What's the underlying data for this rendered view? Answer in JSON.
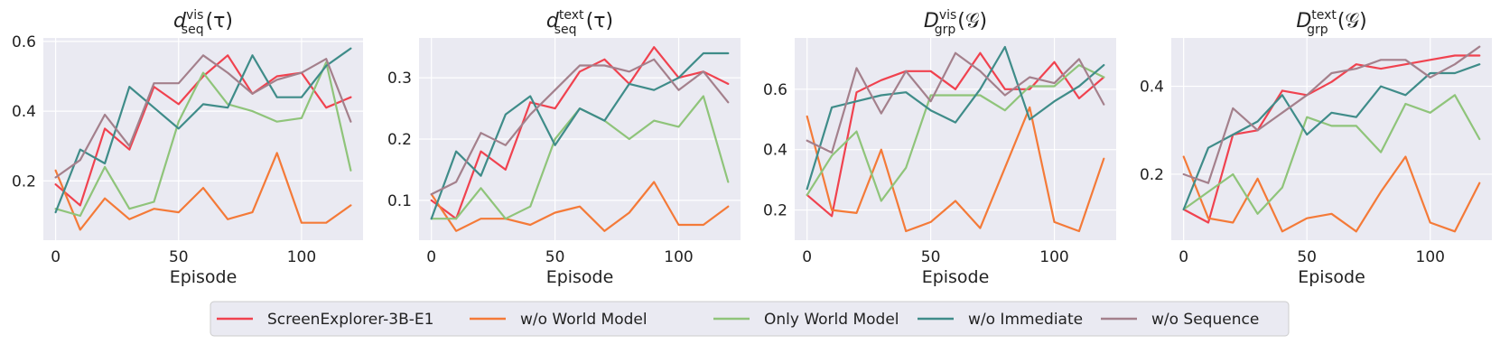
{
  "chart_data": [
    {
      "type": "line",
      "title_main": "d",
      "title_sup": "vis",
      "title_sub": "seq",
      "title_arg": "(τ)",
      "xlabel": "Episode",
      "ylabel": "",
      "xlim": [
        -5,
        125
      ],
      "ylim": [
        0.03,
        0.61
      ],
      "xticks": [
        0,
        50,
        100
      ],
      "yticks": [
        0.2,
        0.4,
        0.6
      ],
      "ytick_labels": [
        "0.2",
        "0.4",
        "0.6"
      ],
      "x": [
        0,
        10,
        20,
        30,
        40,
        50,
        60,
        70,
        80,
        90,
        100,
        110,
        120
      ],
      "series": [
        {
          "name": "ScreenExplorer-3B-E1",
          "values": [
            0.19,
            0.13,
            0.35,
            0.29,
            0.47,
            0.42,
            0.5,
            0.56,
            0.45,
            0.5,
            0.51,
            0.41,
            0.44
          ]
        },
        {
          "name": "w/o World Model",
          "values": [
            0.23,
            0.06,
            0.15,
            0.09,
            0.12,
            0.11,
            0.18,
            0.09,
            0.11,
            0.28,
            0.08,
            0.08,
            0.13
          ]
        },
        {
          "name": "Only World Model",
          "values": [
            0.12,
            0.1,
            0.24,
            0.12,
            0.14,
            0.37,
            0.51,
            0.42,
            0.4,
            0.37,
            0.38,
            0.54,
            0.23
          ]
        },
        {
          "name": "w/o Immediate",
          "values": [
            0.11,
            0.29,
            0.25,
            0.47,
            0.41,
            0.35,
            0.42,
            0.41,
            0.56,
            0.44,
            0.44,
            0.53,
            0.58
          ]
        },
        {
          "name": "w/o Sequence",
          "values": [
            0.21,
            0.26,
            0.39,
            0.3,
            0.48,
            0.48,
            0.56,
            0.51,
            0.45,
            0.49,
            0.51,
            0.55,
            0.37
          ]
        }
      ]
    },
    {
      "type": "line",
      "title_main": "d",
      "title_sup": "text",
      "title_sub": "seq",
      "title_arg": "(τ)",
      "xlabel": "Episode",
      "ylabel": "",
      "xlim": [
        -5,
        125
      ],
      "ylim": [
        0.035,
        0.365
      ],
      "xticks": [
        0,
        50,
        100
      ],
      "yticks": [
        0.1,
        0.2,
        0.3
      ],
      "ytick_labels": [
        "0.1",
        "0.2",
        "0.3"
      ],
      "x": [
        0,
        10,
        20,
        30,
        40,
        50,
        60,
        70,
        80,
        90,
        100,
        110,
        120
      ],
      "series": [
        {
          "name": "ScreenExplorer-3B-E1",
          "values": [
            0.1,
            0.07,
            0.18,
            0.15,
            0.26,
            0.25,
            0.31,
            0.33,
            0.29,
            0.35,
            0.3,
            0.31,
            0.29
          ]
        },
        {
          "name": "w/o World Model",
          "values": [
            0.11,
            0.05,
            0.07,
            0.07,
            0.06,
            0.08,
            0.09,
            0.05,
            0.08,
            0.13,
            0.06,
            0.06,
            0.09
          ]
        },
        {
          "name": "Only World Model",
          "values": [
            0.07,
            0.07,
            0.12,
            0.07,
            0.09,
            0.2,
            0.25,
            0.23,
            0.2,
            0.23,
            0.22,
            0.27,
            0.13
          ]
        },
        {
          "name": "w/o Immediate",
          "values": [
            0.07,
            0.18,
            0.14,
            0.24,
            0.27,
            0.19,
            0.25,
            0.23,
            0.29,
            0.28,
            0.3,
            0.34,
            0.34
          ]
        },
        {
          "name": "w/o Sequence",
          "values": [
            0.11,
            0.13,
            0.21,
            0.19,
            0.24,
            0.28,
            0.32,
            0.32,
            0.31,
            0.33,
            0.28,
            0.31,
            0.26
          ]
        }
      ]
    },
    {
      "type": "line",
      "title_main": "D",
      "title_sup": "vis",
      "title_sub": "grp",
      "title_arg": "(𝒢)",
      "xlabel": "Episode",
      "ylabel": "",
      "xlim": [
        -5,
        125
      ],
      "ylim": [
        0.1,
        0.77
      ],
      "xticks": [
        0,
        50,
        100
      ],
      "yticks": [
        0.2,
        0.4,
        0.6
      ],
      "ytick_labels": [
        "0.2",
        "0.4",
        "0.6"
      ],
      "x": [
        0,
        10,
        20,
        30,
        40,
        50,
        60,
        70,
        80,
        90,
        100,
        110,
        120
      ],
      "series": [
        {
          "name": "ScreenExplorer-3B-E1",
          "values": [
            0.25,
            0.18,
            0.59,
            0.63,
            0.66,
            0.66,
            0.6,
            0.72,
            0.6,
            0.6,
            0.69,
            0.57,
            0.64
          ]
        },
        {
          "name": "w/o World Model",
          "values": [
            0.51,
            0.2,
            0.19,
            0.4,
            0.13,
            0.16,
            0.23,
            0.14,
            0.34,
            0.54,
            0.16,
            0.13,
            0.37
          ]
        },
        {
          "name": "Only World Model",
          "values": [
            0.25,
            0.38,
            0.46,
            0.23,
            0.34,
            0.58,
            0.58,
            0.58,
            0.53,
            0.61,
            0.61,
            0.68,
            0.64
          ]
        },
        {
          "name": "w/o Immediate",
          "values": [
            0.27,
            0.54,
            0.56,
            0.58,
            0.59,
            0.53,
            0.49,
            0.6,
            0.74,
            0.5,
            0.56,
            0.61,
            0.68
          ]
        },
        {
          "name": "w/o Sequence",
          "values": [
            0.43,
            0.39,
            0.67,
            0.52,
            0.66,
            0.56,
            0.72,
            0.66,
            0.58,
            0.64,
            0.62,
            0.7,
            0.55
          ]
        }
      ]
    },
    {
      "type": "line",
      "title_main": "D",
      "title_sup": "text",
      "title_sub": "grp",
      "title_arg": "(𝒢)",
      "xlabel": "Episode",
      "ylabel": "",
      "xlim": [
        -5,
        125
      ],
      "ylim": [
        0.05,
        0.51
      ],
      "xticks": [
        0,
        50,
        100
      ],
      "yticks": [
        0.2,
        0.4
      ],
      "ytick_labels": [
        "0.2",
        "0.4"
      ],
      "x": [
        0,
        10,
        20,
        30,
        40,
        50,
        60,
        70,
        80,
        90,
        100,
        110,
        120
      ],
      "series": [
        {
          "name": "ScreenExplorer-3B-E1",
          "values": [
            0.12,
            0.09,
            0.29,
            0.3,
            0.39,
            0.38,
            0.41,
            0.45,
            0.44,
            0.45,
            0.46,
            0.47,
            0.47
          ]
        },
        {
          "name": "w/o World Model",
          "values": [
            0.24,
            0.1,
            0.09,
            0.19,
            0.07,
            0.1,
            0.11,
            0.07,
            0.16,
            0.24,
            0.09,
            0.07,
            0.18
          ]
        },
        {
          "name": "Only World Model",
          "values": [
            0.12,
            0.16,
            0.2,
            0.11,
            0.17,
            0.33,
            0.31,
            0.31,
            0.25,
            0.36,
            0.34,
            0.38,
            0.28
          ]
        },
        {
          "name": "w/o Immediate",
          "values": [
            0.12,
            0.26,
            0.29,
            0.32,
            0.38,
            0.29,
            0.34,
            0.33,
            0.4,
            0.38,
            0.43,
            0.43,
            0.45
          ]
        },
        {
          "name": "w/o Sequence",
          "values": [
            0.2,
            0.18,
            0.35,
            0.3,
            0.34,
            0.38,
            0.43,
            0.44,
            0.46,
            0.46,
            0.42,
            0.45,
            0.49
          ]
        }
      ]
    }
  ],
  "legend": {
    "placement": "bottom-center",
    "items": [
      {
        "label": "ScreenExplorer-3B-E1",
        "color": "#f0424f"
      },
      {
        "label": "w/o World Model",
        "color": "#f47a38"
      },
      {
        "label": "Only World Model",
        "color": "#8fc47a"
      },
      {
        "label": "w/o Immediate",
        "color": "#3f8c89"
      },
      {
        "label": "w/o Sequence",
        "color": "#a4808c"
      }
    ]
  },
  "colors": {
    "plot_background": "#eaeaf2",
    "grid": "#ffffff",
    "legend_background": "#eaeaf2",
    "legend_border": "#cccccc"
  }
}
